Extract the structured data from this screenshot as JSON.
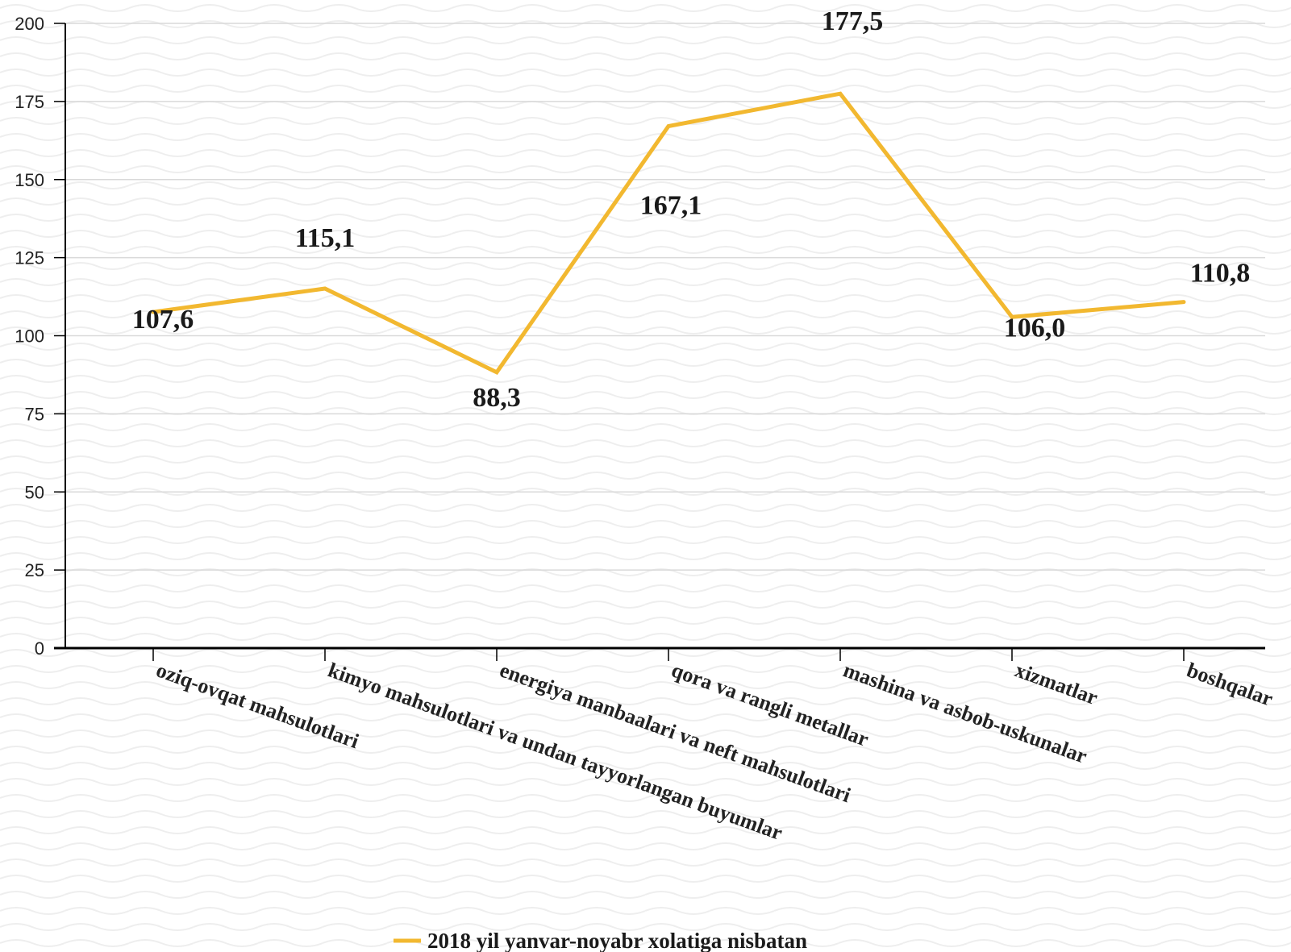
{
  "chart_data": {
    "type": "line",
    "categories": [
      "oziq-ovqat mahsulotlari",
      "kimyo mahsulotlari va undan tayyorlangan buyumlar",
      "energiya manbaalari va neft mahsulotlari",
      "qora va rangli metallar",
      "mashina va asbob-uskunalar",
      "xizmatlar",
      "boshqalar"
    ],
    "series": [
      {
        "name": "2018 yil yanvar-noyabr xolatiga nisbatan",
        "values": [
          107.6,
          115.1,
          88.3,
          167.1,
          177.5,
          106.0,
          110.8
        ],
        "labels": [
          "107,6",
          "115,1",
          "88,3",
          "167,1",
          "177,5",
          "106,0",
          "110,8"
        ],
        "color": "#f2b830"
      }
    ],
    "ylim": [
      0,
      200
    ],
    "yticks": [
      0,
      25,
      50,
      75,
      100,
      125,
      150,
      175,
      200
    ],
    "grid": true,
    "legend": "bottom-center",
    "title": "",
    "xlabel": "",
    "ylabel": ""
  },
  "colors": {
    "line": "#f2b830",
    "grid": "#d9d9d9",
    "axis": "#000000",
    "background_wave": "#eeeeee"
  }
}
